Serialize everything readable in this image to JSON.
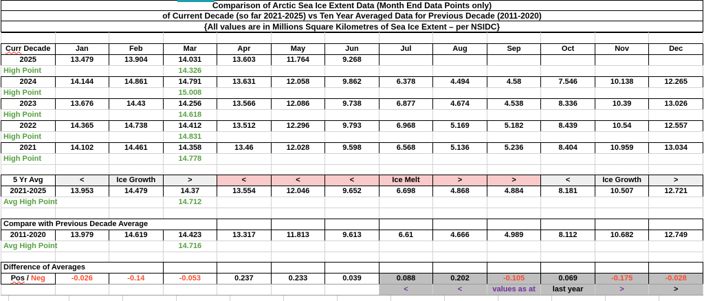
{
  "titles": {
    "line1": "Comparison of Arctic Sea Ice Extent Data (Month End Data Points only)",
    "line2": "of Current Decade (so far 2021-2025) vs Ten Year Averaged Data for Previous Decade (2011-2020)",
    "line3": "{All values are in Millions Square Kilometres of Sea Ice Extent – per NSIDC}"
  },
  "colors": {
    "green": "#55a041",
    "red": "#ff4a2b",
    "purple": "#7030a0",
    "black": "#000000",
    "pink_bg": "#f8caca",
    "lightgray_bg": "#efefef",
    "gray_bg": "#bfbfbf",
    "teal": "#1e9fae",
    "grid_line": "#cfcfcf"
  },
  "table": {
    "header": {
      "curr": "Curr",
      "rest": " Decade"
    },
    "posneg_label": {
      "pos": "Pos",
      "sep": " / ",
      "neg": "Neg"
    },
    "rows": [
      {
        "kind": "spacer"
      },
      {
        "kind": "header",
        "cells": [
          "Jan",
          "Feb",
          "Mar",
          "Apr",
          "May",
          "Jun",
          "Jul",
          "Aug",
          "Sep",
          "Oct",
          "Nov",
          "Dec"
        ]
      },
      {
        "kind": "year",
        "label": "2025",
        "cells": [
          "13.479",
          "13.904",
          "14.031",
          "13.603",
          "11.764",
          "9.268",
          "",
          "",
          "",
          "",
          "",
          ""
        ]
      },
      {
        "kind": "hp",
        "label": "High Point",
        "cells": [
          "",
          "",
          "14.326",
          "",
          "",
          "",
          "",
          "",
          "",
          "",
          "",
          ""
        ]
      },
      {
        "kind": "year",
        "label": "2024",
        "cells": [
          "14.144",
          "14.861",
          "14.791",
          "13.631",
          "12.058",
          "9.862",
          "6.378",
          "4.494",
          "4.58",
          "7.546",
          "10.138",
          "12.265"
        ]
      },
      {
        "kind": "hp",
        "label": "High Point",
        "cells": [
          "",
          "",
          "15.008",
          "",
          "",
          "",
          "",
          "",
          "",
          "",
          "",
          ""
        ]
      },
      {
        "kind": "year",
        "label": "2023",
        "cells": [
          "13.676",
          "14.43",
          "14.256",
          "13.566",
          "12.086",
          "9.738",
          "6.877",
          "4.674",
          "4.538",
          "8.336",
          "10.39",
          "13.026"
        ]
      },
      {
        "kind": "hp",
        "label": "High Point",
        "cells": [
          "",
          "",
          "14.618",
          "",
          "",
          "",
          "",
          "",
          "",
          "",
          "",
          ""
        ]
      },
      {
        "kind": "year",
        "label": "2022",
        "cells": [
          "14.365",
          "14.738",
          "14.412",
          "13.512",
          "12.296",
          "9.793",
          "6.968",
          "5.169",
          "5.182",
          "8.439",
          "10.54",
          "12.557"
        ]
      },
      {
        "kind": "hp",
        "label": "High Point",
        "cells": [
          "",
          "",
          "14.831",
          "",
          "",
          "",
          "",
          "",
          "",
          "",
          "",
          ""
        ]
      },
      {
        "kind": "year",
        "label": "2021",
        "cells": [
          "14.102",
          "14.461",
          "14.358",
          "13.46",
          "12.028",
          "9.598",
          "6.568",
          "5.136",
          "5.236",
          "8.404",
          "10.959",
          "13.034"
        ]
      },
      {
        "kind": "hp",
        "label": "High Point",
        "cells": [
          "",
          "",
          "14.778",
          "",
          "",
          "",
          "",
          "",
          "",
          "",
          "",
          ""
        ]
      },
      {
        "kind": "spacer"
      },
      {
        "kind": "indicator",
        "label": "5 Yr Avg",
        "cells": [
          "<",
          "Ice Growth",
          ">",
          "<",
          "<",
          "<",
          "Ice Melt",
          ">",
          ">",
          "<",
          "Ice Growth",
          ">"
        ],
        "bgs": [
          "l",
          "l",
          "l",
          "p",
          "p",
          "p",
          "p",
          "p",
          "p",
          "l",
          "l",
          "l"
        ]
      },
      {
        "kind": "avg",
        "label": "2021-2025",
        "cells": [
          "13.953",
          "14.479",
          "14.37",
          "13.554",
          "12.046",
          "9.652",
          "6.698",
          "4.868",
          "4.884",
          "8.181",
          "10.507",
          "12.721"
        ]
      },
      {
        "kind": "hp",
        "label": "Avg High Point",
        "cells": [
          "",
          "",
          "14.712",
          "",
          "",
          "",
          "",
          "",
          "",
          "",
          "",
          ""
        ]
      },
      {
        "kind": "spacer"
      },
      {
        "kind": "section",
        "label": "Compare with Previous Decade Average",
        "span": 4
      },
      {
        "kind": "avg",
        "label": "2011-2020",
        "cells": [
          "13.979",
          "14.619",
          "14.423",
          "13.317",
          "11.813",
          "9.613",
          "6.61",
          "4.666",
          "4.989",
          "8.112",
          "10.682",
          "12.749"
        ]
      },
      {
        "kind": "hp",
        "label": "Avg High Point",
        "cells": [
          "",
          "",
          "14.716",
          "",
          "",
          "",
          "",
          "",
          "",
          "",
          "",
          ""
        ]
      },
      {
        "kind": "spacer"
      },
      {
        "kind": "section",
        "label": "Difference of Averages",
        "span": 3
      },
      {
        "kind": "posneg",
        "cells": [
          "-0.026",
          "-0.14",
          "-0.053",
          "0.237",
          "0.233",
          "0.039",
          "0.088",
          "0.202",
          "-0.105",
          "0.069",
          "-0.175",
          "-0.028"
        ]
      },
      {
        "kind": "note",
        "cells": [
          "",
          "",
          "",
          "",
          "",
          "",
          "<",
          "<",
          "values as at",
          "last year",
          ">",
          ">"
        ],
        "colors": [
          "",
          "",
          "",
          "",
          "",
          "",
          "purple",
          "purple",
          "purple",
          "black",
          "purple",
          "black"
        ]
      }
    ]
  }
}
